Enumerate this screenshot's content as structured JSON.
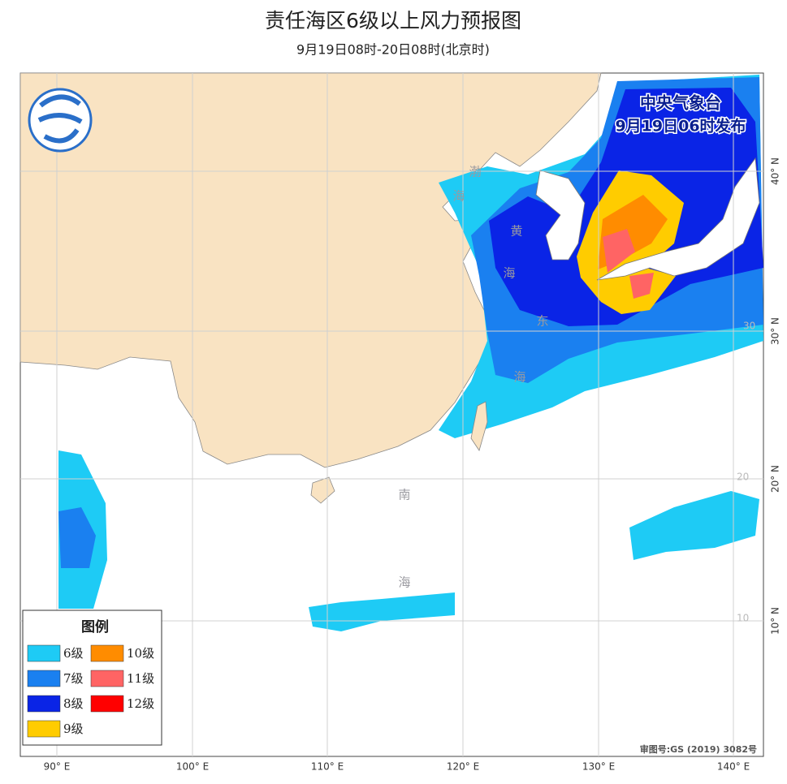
{
  "header": {
    "title": "责任海区6级以上风力预报图",
    "subtitle": "9月19日08时-20日08时(北京时)"
  },
  "issuer": {
    "name": "中央气象台",
    "time": "9月19日06时发布"
  },
  "sea_labels": [
    "渤",
    "海",
    "黄",
    "海",
    "东",
    "海",
    "南",
    "海"
  ],
  "legend": {
    "title": "图例",
    "items": [
      {
        "label": "6级",
        "color": "#1ecbf5"
      },
      {
        "label": "7级",
        "color": "#1a80f0"
      },
      {
        "label": "8级",
        "color": "#0a24e6"
      },
      {
        "label": "9级",
        "color": "#ffcc00"
      },
      {
        "label": "10级",
        "color": "#ff8c00"
      },
      {
        "label": "11级",
        "color": "#ff6464"
      },
      {
        "label": "12级",
        "color": "#ff0000"
      }
    ]
  },
  "axis": {
    "x": [
      "90° E",
      "100° E",
      "110° E",
      "120° E",
      "130° E",
      "140° E"
    ],
    "y": [
      "40° N",
      "30° N",
      "20° N",
      "10° N"
    ],
    "grid": [
      "30",
      "20",
      "10"
    ]
  },
  "approval": "审图号:GS (2019) 3082号"
}
